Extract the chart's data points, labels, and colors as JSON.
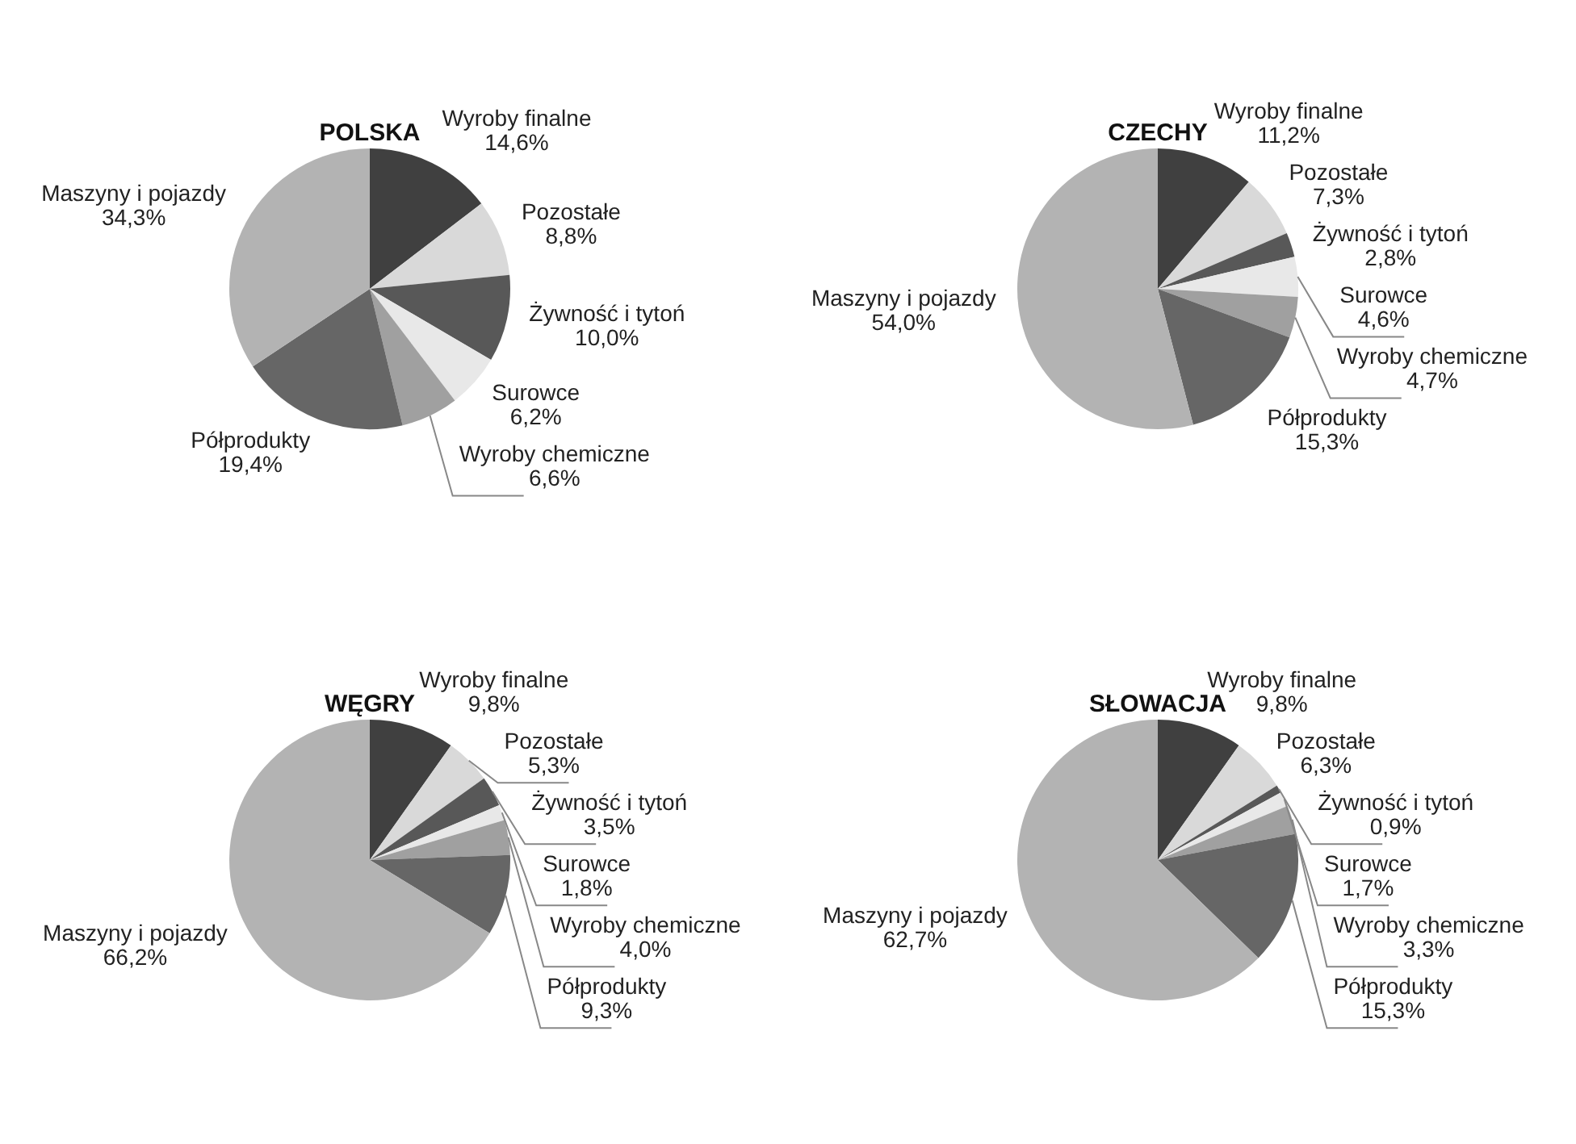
{
  "chart_data": [
    {
      "type": "pie",
      "title": "POLSKA",
      "categories": [
        "Wyroby finalne",
        "Pozostałe",
        "Żywność i tytoń",
        "Surowce",
        "Wyroby chemiczne",
        "Półprodukty",
        "Maszyny i pojazdy"
      ],
      "values": [
        14.6,
        8.8,
        10.0,
        6.2,
        6.6,
        19.4,
        34.3
      ],
      "value_labels": [
        "14,6%",
        "8,8%",
        "10,0%",
        "6,2%",
        "6,6%",
        "19,4%",
        "34,3%"
      ],
      "colors": [
        "#404040",
        "#d9d9d9",
        "#585858",
        "#e8e8e8",
        "#a0a0a0",
        "#666666",
        "#b3b3b3"
      ],
      "legend": false
    },
    {
      "type": "pie",
      "title": "CZECHY",
      "categories": [
        "Wyroby finalne",
        "Pozostałe",
        "Żywność i tytoń",
        "Surowce",
        "Wyroby chemiczne",
        "Półprodukty",
        "Maszyny i pojazdy"
      ],
      "values": [
        11.2,
        7.3,
        2.8,
        4.6,
        4.7,
        15.3,
        54.0
      ],
      "value_labels": [
        "11,2%",
        "7,3%",
        "2,8%",
        "4,6%",
        "4,7%",
        "15,3%",
        "54,0%"
      ],
      "colors": [
        "#404040",
        "#d9d9d9",
        "#585858",
        "#e8e8e8",
        "#a0a0a0",
        "#666666",
        "#b3b3b3"
      ],
      "legend": false
    },
    {
      "type": "pie",
      "title": "WĘGRY",
      "categories": [
        "Wyroby finalne",
        "Pozostałe",
        "Żywność i tytoń",
        "Surowce",
        "Wyroby chemiczne",
        "Półprodukty",
        "Maszyny i pojazdy"
      ],
      "values": [
        9.8,
        5.3,
        3.5,
        1.8,
        4.0,
        9.3,
        66.2
      ],
      "value_labels": [
        "9,8%",
        "5,3%",
        "3,5%",
        "1,8%",
        "4,0%",
        "9,3%",
        "66,2%"
      ],
      "colors": [
        "#404040",
        "#d9d9d9",
        "#585858",
        "#e8e8e8",
        "#a0a0a0",
        "#666666",
        "#b3b3b3"
      ],
      "legend": false
    },
    {
      "type": "pie",
      "title": "SŁOWACJA",
      "categories": [
        "Wyroby finalne",
        "Pozostałe",
        "Żywność i tytoń",
        "Surowce",
        "Wyroby chemiczne",
        "Półprodukty",
        "Maszyny i pojazdy"
      ],
      "values": [
        9.8,
        6.3,
        0.9,
        1.7,
        3.3,
        15.3,
        62.7
      ],
      "value_labels": [
        "9,8%",
        "6,3%",
        "0,9%",
        "1,7%",
        "3,3%",
        "15,3%",
        "62,7%"
      ],
      "colors": [
        "#404040",
        "#d9d9d9",
        "#585858",
        "#e8e8e8",
        "#a0a0a0",
        "#666666",
        "#b3b3b3"
      ],
      "legend": false
    }
  ]
}
